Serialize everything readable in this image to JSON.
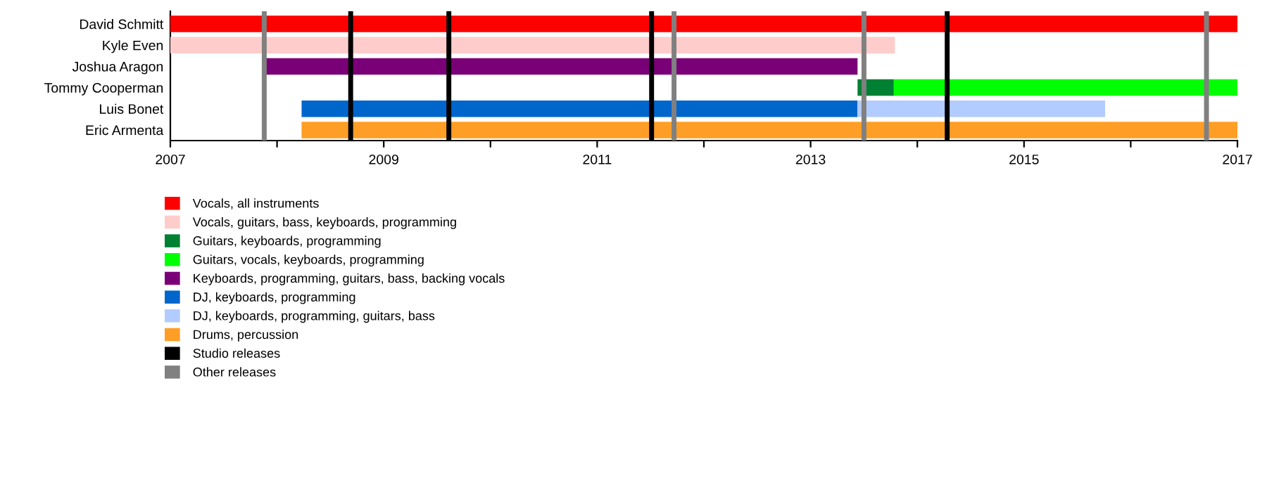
{
  "chart_data": {
    "type": "bar",
    "orientation": "horizontal",
    "legend": "bottom",
    "categories": [
      "David Schmitt",
      "Kyle Even",
      "Joshua Aragon",
      "Tommy Cooperman",
      "Luis Bonet",
      "Eric Armenta"
    ],
    "series": [
      {
        "name": "Vocals, all instruments",
        "color": "#ff0000",
        "base": [
          2007,
          null,
          null,
          null,
          null,
          null
        ],
        "values": [
          10,
          null,
          null,
          null,
          null,
          null
        ]
      },
      {
        "name": "Vocals, guitars, bass, keyboards, programming",
        "color": "#ffcccc",
        "base": [
          null,
          2007,
          null,
          null,
          null,
          null
        ],
        "values": [
          null,
          6.79,
          null,
          null,
          null,
          null
        ]
      },
      {
        "name": "Guitars, keyboards, programming",
        "color": "#008033",
        "base": [
          null,
          null,
          null,
          2013.44,
          null,
          null
        ],
        "values": [
          null,
          null,
          null,
          0.34,
          null,
          null
        ]
      },
      {
        "name": "Guitars, vocals, keyboards, programming",
        "color": "#00ff00",
        "base": [
          null,
          null,
          null,
          2013.78,
          null,
          null
        ],
        "values": [
          null,
          null,
          null,
          3.22,
          null,
          null
        ]
      },
      {
        "name": "Keyboards, programming, guitars, bass, backing vocals",
        "color": "#7a0077",
        "base": [
          null,
          null,
          2007.88,
          null,
          null,
          null
        ],
        "values": [
          null,
          null,
          5.56,
          null,
          null,
          null
        ]
      },
      {
        "name": "DJ, keyboards, programming",
        "color": "#0066cc",
        "base": [
          null,
          null,
          null,
          null,
          2008.23,
          null
        ],
        "values": [
          null,
          null,
          null,
          null,
          5.21,
          null
        ]
      },
      {
        "name": "DJ, keyboards, programming, guitars, bass",
        "color": "#b3ccff",
        "base": [
          null,
          null,
          null,
          null,
          2013.44,
          null
        ],
        "values": [
          null,
          null,
          null,
          null,
          2.32,
          null
        ]
      },
      {
        "name": "Drums, percussion",
        "color": "#ff9e26",
        "base": [
          null,
          null,
          null,
          null,
          null,
          2008.23
        ],
        "values": [
          null,
          null,
          null,
          null,
          null,
          8.77
        ]
      }
    ],
    "ref_lines": [
      {
        "axis": "x",
        "value": 2008.69,
        "label": "Studio releases",
        "color": "#000000"
      },
      {
        "axis": "x",
        "value": 2009.61,
        "label": null,
        "color": "#000000"
      },
      {
        "axis": "x",
        "value": 2011.51,
        "label": null,
        "color": "#000000"
      },
      {
        "axis": "x",
        "value": 2014.28,
        "label": null,
        "color": "#000000"
      },
      {
        "axis": "x",
        "value": 2007.88,
        "label": "Other releases",
        "color": "#808080"
      },
      {
        "axis": "x",
        "value": 2011.72,
        "label": null,
        "color": "#808080"
      },
      {
        "axis": "x",
        "value": 2013.5,
        "label": null,
        "color": "#808080"
      },
      {
        "axis": "x",
        "value": 2016.71,
        "label": null,
        "color": "#808080"
      }
    ],
    "xlim": [
      2007,
      2017
    ],
    "xticks": [
      2007,
      {
        "value": 2008,
        "label": null
      },
      2009,
      {
        "value": 2010,
        "label": null
      },
      2011,
      {
        "value": 2012,
        "label": null
      },
      2013,
      {
        "value": 2014,
        "label": null
      },
      2015,
      {
        "value": 2016,
        "label": null
      },
      2017
    ],
    "grid": false
  }
}
